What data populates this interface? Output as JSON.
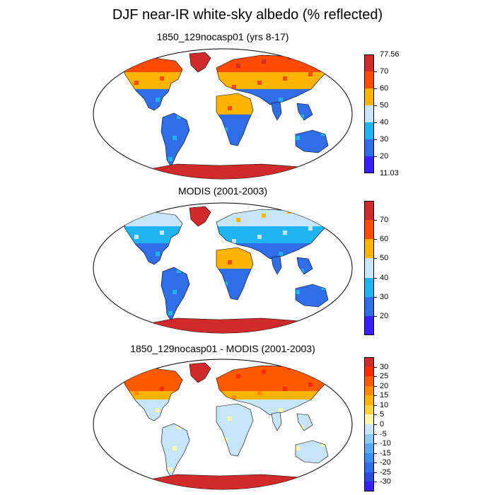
{
  "figure": {
    "title": "DJF near-IR white-sky albedo (% reflected)"
  },
  "colors": {
    "albedo_levels": [
      "#3a1fff",
      "#2f6ee6",
      "#1eb4f0",
      "#c6e6f7",
      "#ffb400",
      "#ff4a00",
      "#d12a2a"
    ],
    "diff_levels": [
      "#3a1fff",
      "#2a4be0",
      "#2f6ee6",
      "#3c8ef0",
      "#5aaaf0",
      "#8ccaf5",
      "#c6e6f7",
      "#fff6b0",
      "#ffd23c",
      "#ffb400",
      "#ff8a00",
      "#ff5a00",
      "#ff2a00",
      "#d12a2a"
    ]
  },
  "panels": [
    {
      "subtitle": "1850_129nocasp01 (yrs 8-17)",
      "colorbar": {
        "max_label": "77.56",
        "min_label": "11.03",
        "labels": [
          "70",
          "60",
          "50",
          "40",
          "30",
          "20"
        ]
      }
    },
    {
      "subtitle": "MODIS (2001-2003)",
      "colorbar": {
        "labels": [
          "70",
          "60",
          "50",
          "40",
          "30",
          "20"
        ]
      }
    },
    {
      "subtitle": "1850_129nocasp01 - MODIS (2001-2003)",
      "colorbar": {
        "labels": [
          "30",
          "25",
          "20",
          "15",
          "10",
          "5",
          "0",
          "-5",
          "-10",
          "-15",
          "-20",
          "-25",
          "-30"
        ]
      }
    }
  ]
}
